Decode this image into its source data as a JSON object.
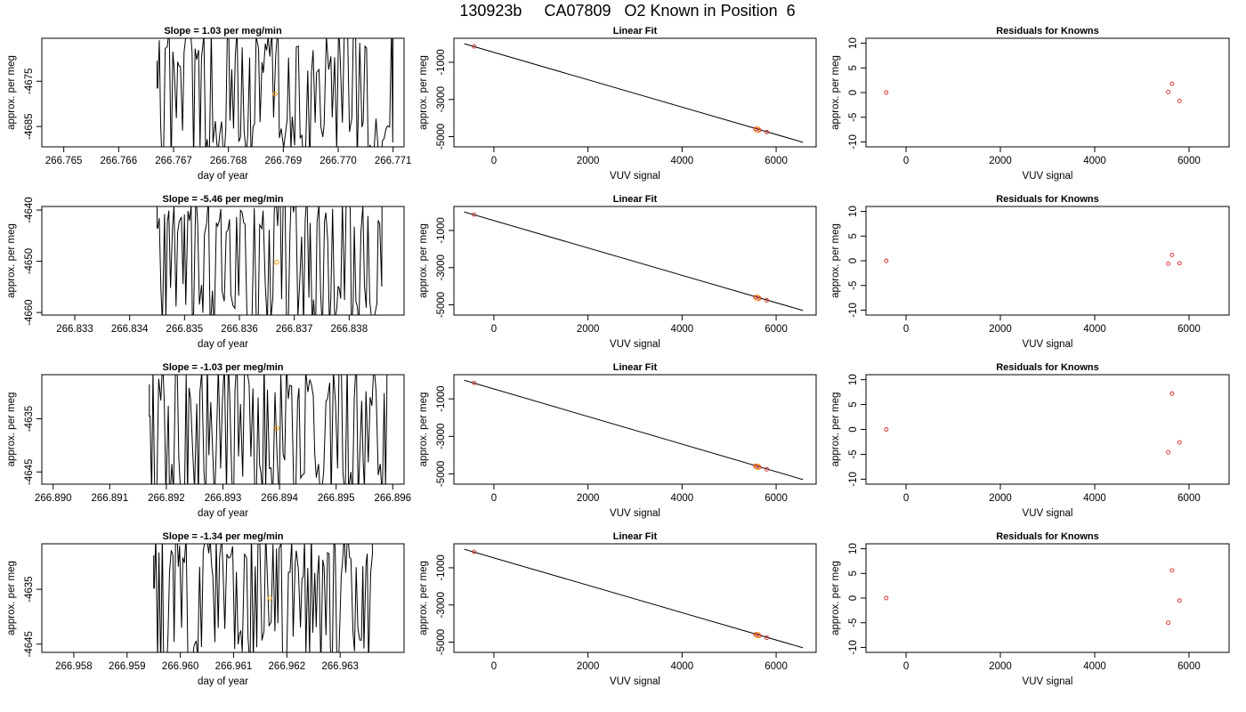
{
  "figure": {
    "title": "130923b     CA07809   O2 Known in Position  6"
  },
  "chart_data": [
    {
      "type": "line",
      "row": 0,
      "col": 0,
      "title": "Slope =  1.03  per meg/min",
      "xlabel": "day of year",
      "ylabel": "approx. per meg",
      "xlim": [
        266.7646,
        266.7712
      ],
      "ylim": [
        -4689.5,
        -4665.5
      ],
      "xticks": [
        266.765,
        266.766,
        266.767,
        266.768,
        266.769,
        266.77,
        266.771
      ],
      "xtick_labels": [
        "266.765",
        "266.766",
        "266.767",
        "266.768",
        "266.769",
        "266.770",
        "266.771"
      ],
      "yticks": [
        -4685,
        -4675
      ],
      "ytick_labels": [
        "-4685",
        "-4675"
      ],
      "series": [
        {
          "x_start": 266.7667,
          "x_end": 266.771,
          "seed": 11,
          "y_low": -4694,
          "y_high": -4662,
          "lead_y": -4675.5
        }
      ],
      "marker": {
        "x": 266.76885,
        "y": -4677.8
      }
    },
    {
      "type": "scatter",
      "row": 0,
      "col": 1,
      "title": "Linear Fit",
      "xlabel": "VUV signal",
      "ylabel": "approx. per meg",
      "xlim": [
        -850,
        6850
      ],
      "ylim": [
        -5550,
        290
      ],
      "xticks": [
        0,
        2000,
        4000,
        6000
      ],
      "xtick_labels": [
        "0",
        "2000",
        "4000",
        "6000"
      ],
      "yticks": [
        -5000,
        -3000,
        -1000
      ],
      "ytick_labels": [
        "-5000",
        "-3000",
        "-1000"
      ],
      "fit_line": {
        "x": [
          -630,
          6570
        ],
        "y": [
          -5,
          -5305
        ]
      },
      "points": [
        {
          "x": -420,
          "y": -150
        },
        {
          "x": 5560,
          "y": -4588
        },
        {
          "x": 5640,
          "y": -4645
        },
        {
          "x": 5800,
          "y": -4760
        }
      ],
      "orange_points": [
        {
          "x": 5600,
          "y": -4620
        }
      ]
    },
    {
      "type": "scatter",
      "row": 0,
      "col": 2,
      "title": "Residuals for Knowns",
      "xlabel": "VUV signal",
      "ylabel": "approx. per meg",
      "xlim": [
        -850,
        6850
      ],
      "ylim": [
        -11,
        11
      ],
      "xticks": [
        0,
        2000,
        4000,
        6000
      ],
      "xtick_labels": [
        "0",
        "2000",
        "4000",
        "6000"
      ],
      "yticks": [
        -10,
        -5,
        0,
        5,
        10
      ],
      "ytick_labels": [
        "-10",
        "-5",
        "0",
        "5",
        "10"
      ],
      "points": [
        {
          "x": -420,
          "y": 0
        },
        {
          "x": 5560,
          "y": 0.1
        },
        {
          "x": 5640,
          "y": 1.8
        },
        {
          "x": 5800,
          "y": -1.7
        }
      ]
    },
    {
      "type": "line",
      "row": 1,
      "col": 0,
      "title": "Slope =  -5.46  per meg/min",
      "xlabel": "day of year",
      "ylabel": "approx. per meg",
      "xlim": [
        266.8324,
        266.839
      ],
      "ylim": [
        -4660.5,
        -4639.3
      ],
      "xticks": [
        266.833,
        266.834,
        266.835,
        266.836,
        266.837,
        266.838
      ],
      "xtick_labels": [
        "266.833",
        "266.834",
        "266.835",
        "266.836",
        "266.837",
        "266.838"
      ],
      "yticks": [
        -4660,
        -4650,
        -4640
      ],
      "ytick_labels": [
        "-4660",
        "-4650",
        "-4640"
      ],
      "series": [
        {
          "x_start": 266.8345,
          "x_end": 266.8386,
          "seed": 23,
          "y_low": -4664,
          "y_high": -4636,
          "lead_y": -4642.5
        }
      ],
      "marker": {
        "x": 266.83668,
        "y": -4650.2
      }
    },
    {
      "type": "scatter",
      "row": 1,
      "col": 1,
      "title": "Linear Fit",
      "xlabel": "VUV signal",
      "ylabel": "approx. per meg",
      "xlim": [
        -850,
        6850
      ],
      "ylim": [
        -5550,
        290
      ],
      "xticks": [
        0,
        2000,
        4000,
        6000
      ],
      "xtick_labels": [
        "0",
        "2000",
        "4000",
        "6000"
      ],
      "yticks": [
        -5000,
        -3000,
        -1000
      ],
      "ytick_labels": [
        "-5000",
        "-3000",
        "-1000"
      ],
      "fit_line": {
        "x": [
          -630,
          6570
        ],
        "y": [
          -5,
          -5305
        ]
      },
      "points": [
        {
          "x": -420,
          "y": -150
        },
        {
          "x": 5560,
          "y": -4588
        },
        {
          "x": 5640,
          "y": -4645
        },
        {
          "x": 5800,
          "y": -4760
        }
      ],
      "orange_points": [
        {
          "x": 5600,
          "y": -4620
        }
      ]
    },
    {
      "type": "scatter",
      "row": 1,
      "col": 2,
      "title": "Residuals for Knowns",
      "xlabel": "VUV signal",
      "ylabel": "approx. per meg",
      "xlim": [
        -850,
        6850
      ],
      "ylim": [
        -11,
        11
      ],
      "xticks": [
        0,
        2000,
        4000,
        6000
      ],
      "xtick_labels": [
        "0",
        "2000",
        "4000",
        "6000"
      ],
      "yticks": [
        -10,
        -5,
        0,
        5,
        10
      ],
      "ytick_labels": [
        "-10",
        "-5",
        "0",
        "5",
        "10"
      ],
      "points": [
        {
          "x": -420,
          "y": 0
        },
        {
          "x": 5560,
          "y": -0.6
        },
        {
          "x": 5640,
          "y": 1.2
        },
        {
          "x": 5800,
          "y": -0.5
        }
      ]
    },
    {
      "type": "line",
      "row": 2,
      "col": 0,
      "title": "Slope =  -1.03  per meg/min",
      "xlabel": "day of year",
      "ylabel": "approx. per meg",
      "xlim": [
        266.8898,
        266.8962
      ],
      "ylim": [
        -4647.3,
        -4626.7
      ],
      "xticks": [
        266.89,
        266.891,
        266.892,
        266.893,
        266.894,
        266.895,
        266.896
      ],
      "xtick_labels": [
        "266.890",
        "266.891",
        "266.892",
        "266.893",
        "266.894",
        "266.895",
        "266.896"
      ],
      "yticks": [
        -4645,
        -4635
      ],
      "ytick_labels": [
        "-4645",
        "-4635"
      ],
      "series": [
        {
          "x_start": 266.8917,
          "x_end": 266.8959,
          "seed": 37,
          "y_low": -4651,
          "y_high": -4623,
          "lead_y": -4633.5
        }
      ],
      "marker": {
        "x": 266.89395,
        "y": -4636.8
      }
    },
    {
      "type": "scatter",
      "row": 2,
      "col": 1,
      "title": "Linear Fit",
      "xlabel": "VUV signal",
      "ylabel": "approx. per meg",
      "xlim": [
        -850,
        6850
      ],
      "ylim": [
        -5550,
        290
      ],
      "xticks": [
        0,
        2000,
        4000,
        6000
      ],
      "xtick_labels": [
        "0",
        "2000",
        "4000",
        "6000"
      ],
      "yticks": [
        -5000,
        -3000,
        -1000
      ],
      "ytick_labels": [
        "-5000",
        "-3000",
        "-1000"
      ],
      "fit_line": {
        "x": [
          -630,
          6570
        ],
        "y": [
          -5,
          -5305
        ]
      },
      "points": [
        {
          "x": -420,
          "y": -150
        },
        {
          "x": 5560,
          "y": -4588
        },
        {
          "x": 5640,
          "y": -4645
        },
        {
          "x": 5800,
          "y": -4760
        }
      ],
      "orange_points": [
        {
          "x": 5600,
          "y": -4620
        }
      ]
    },
    {
      "type": "scatter",
      "row": 2,
      "col": 2,
      "title": "Residuals for Knowns",
      "xlabel": "VUV signal",
      "ylabel": "approx. per meg",
      "xlim": [
        -850,
        6850
      ],
      "ylim": [
        -11,
        11
      ],
      "xticks": [
        0,
        2000,
        4000,
        6000
      ],
      "xtick_labels": [
        "0",
        "2000",
        "4000",
        "6000"
      ],
      "yticks": [
        -10,
        -5,
        0,
        5,
        10
      ],
      "ytick_labels": [
        "-10",
        "-5",
        "0",
        "5",
        "10"
      ],
      "points": [
        {
          "x": -420,
          "y": 0
        },
        {
          "x": 5560,
          "y": -4.6
        },
        {
          "x": 5640,
          "y": 7.2
        },
        {
          "x": 5800,
          "y": -2.6
        }
      ]
    },
    {
      "type": "line",
      "row": 3,
      "col": 0,
      "title": "Slope =  -1.34  per meg/min",
      "xlabel": "day of year",
      "ylabel": "approx. per meg",
      "xlim": [
        266.9574,
        266.9642
      ],
      "ylim": [
        -4646.5,
        -4626.7
      ],
      "xticks": [
        266.958,
        266.959,
        266.96,
        266.961,
        266.962,
        266.963
      ],
      "xtick_labels": [
        "266.958",
        "266.959",
        "266.960",
        "266.961",
        "266.962",
        "266.963"
      ],
      "yticks": [
        -4645,
        -4635
      ],
      "ytick_labels": [
        "-4645",
        "-4635"
      ],
      "series": [
        {
          "x_start": 266.9595,
          "x_end": 266.9636,
          "seed": 53,
          "y_low": -4650,
          "y_high": -4624,
          "lead_y": -4633.8
        }
      ],
      "marker": {
        "x": 266.96168,
        "y": -4636.6
      }
    },
    {
      "type": "scatter",
      "row": 3,
      "col": 1,
      "title": "Linear Fit",
      "xlabel": "VUV signal",
      "ylabel": "approx. per meg",
      "xlim": [
        -850,
        6850
      ],
      "ylim": [
        -5550,
        290
      ],
      "xticks": [
        0,
        2000,
        4000,
        6000
      ],
      "xtick_labels": [
        "0",
        "2000",
        "4000",
        "6000"
      ],
      "yticks": [
        -5000,
        -3000,
        -1000
      ],
      "ytick_labels": [
        "-5000",
        "-3000",
        "-1000"
      ],
      "fit_line": {
        "x": [
          -630,
          6570
        ],
        "y": [
          -5,
          -5305
        ]
      },
      "points": [
        {
          "x": -420,
          "y": -150
        },
        {
          "x": 5560,
          "y": -4588
        },
        {
          "x": 5640,
          "y": -4645
        },
        {
          "x": 5800,
          "y": -4760
        }
      ],
      "orange_points": [
        {
          "x": 5600,
          "y": -4620
        }
      ]
    },
    {
      "type": "scatter",
      "row": 3,
      "col": 2,
      "title": "Residuals for Knowns",
      "xlabel": "VUV signal",
      "ylabel": "approx. per meg",
      "xlim": [
        -850,
        6850
      ],
      "ylim": [
        -11,
        11
      ],
      "xticks": [
        0,
        2000,
        4000,
        6000
      ],
      "xtick_labels": [
        "0",
        "2000",
        "4000",
        "6000"
      ],
      "yticks": [
        -10,
        -5,
        0,
        5,
        10
      ],
      "ytick_labels": [
        "-10",
        "-5",
        "0",
        "5",
        "10"
      ],
      "points": [
        {
          "x": -420,
          "y": 0
        },
        {
          "x": 5560,
          "y": -5.0
        },
        {
          "x": 5640,
          "y": 5.6
        },
        {
          "x": 5800,
          "y": -0.5
        }
      ]
    }
  ],
  "colors": {
    "trace": "#000000",
    "fit_line": "#000000",
    "point_outline": "#d62728",
    "orange_point": "#ff9900",
    "blue_point": "#1f3fbf"
  }
}
